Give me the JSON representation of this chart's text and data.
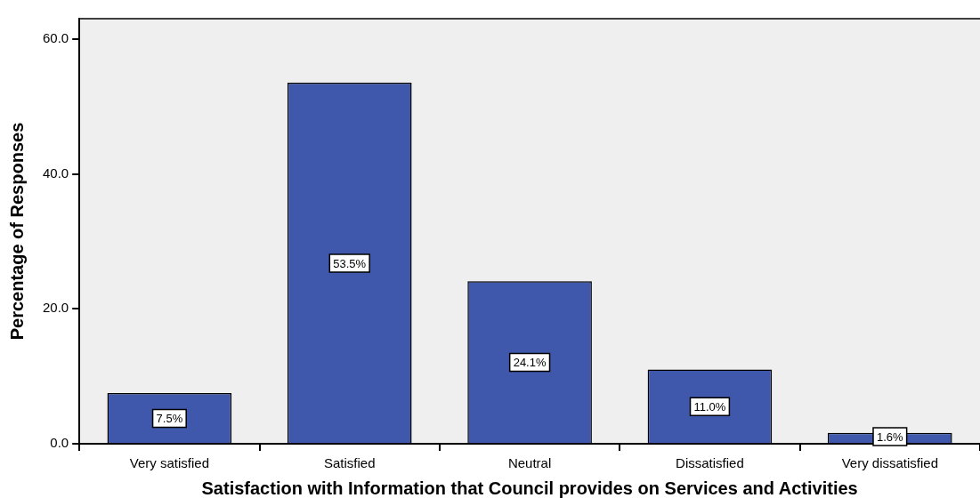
{
  "chart_data": {
    "type": "bar",
    "xlabel": "Satisfaction with Information that Council provides on Services and Activities",
    "ylabel": "Percentage of Responses",
    "categories": [
      "Very satisfied",
      "Satisfied",
      "Neutral",
      "Dissatisfied",
      "Very dissatisfied"
    ],
    "values": [
      7.5,
      53.5,
      24.1,
      11.0,
      1.6
    ],
    "value_labels": [
      "7.5%",
      "53.5%",
      "24.1%",
      "11.0%",
      "1.6%"
    ],
    "color": "#3f58ab",
    "ylim": [
      0,
      63
    ],
    "yticks": [
      {
        "value": 0,
        "label": "0.0"
      },
      {
        "value": 20,
        "label": "20.0"
      },
      {
        "value": 40,
        "label": "40.0"
      },
      {
        "value": 60,
        "label": "60.0"
      }
    ],
    "grid": false,
    "legend": false
  }
}
